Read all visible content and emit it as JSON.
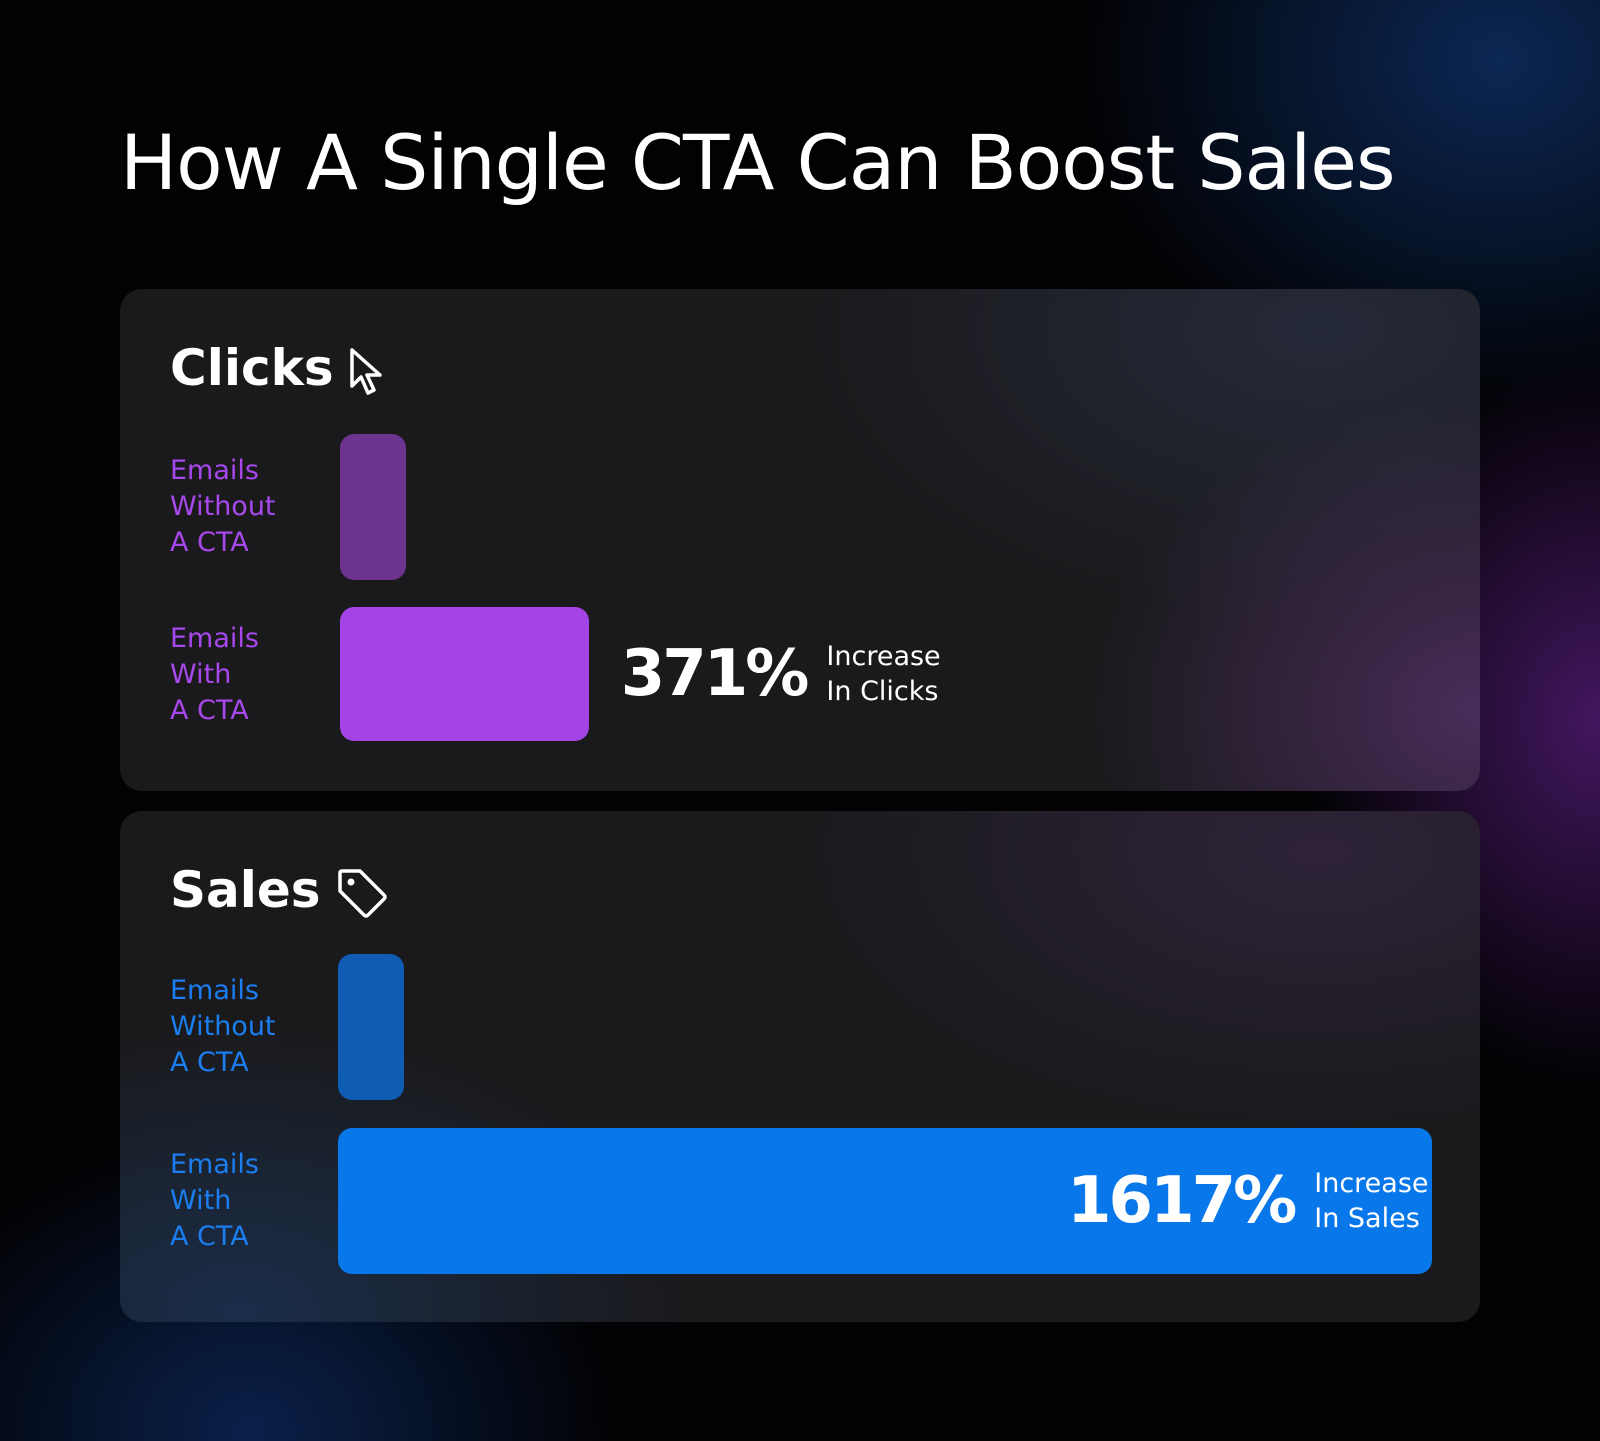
{
  "title": "How A Single CTA Can Boost Sales",
  "colors": {
    "clicks_without": "#6c338f",
    "clicks_with": "#a443e6",
    "sales_without": "#0f5cb4",
    "sales_with": "#0877ea",
    "clicks_label": "#a748ec",
    "sales_label": "#1b7df0"
  },
  "icons": {
    "clicks": "cursor-arrow-icon",
    "sales": "price-tag-icon"
  },
  "chart_data": [
    {
      "type": "bar",
      "orientation": "horizontal",
      "title": "Clicks",
      "categories": [
        "Emails\nWithout\nA CTA",
        "Emails\nWith\nA CTA"
      ],
      "values": [
        1,
        4.71
      ],
      "annotation": {
        "value": "371%",
        "caption": "Increase\nIn Clicks"
      }
    },
    {
      "type": "bar",
      "orientation": "horizontal",
      "title": "Sales",
      "categories": [
        "Emails\nWithout\nA CTA",
        "Emails\nWith\nA CTA"
      ],
      "values": [
        1,
        17.17
      ],
      "annotation": {
        "value": "1617%",
        "caption": "Increase\nIn Sales"
      }
    }
  ]
}
